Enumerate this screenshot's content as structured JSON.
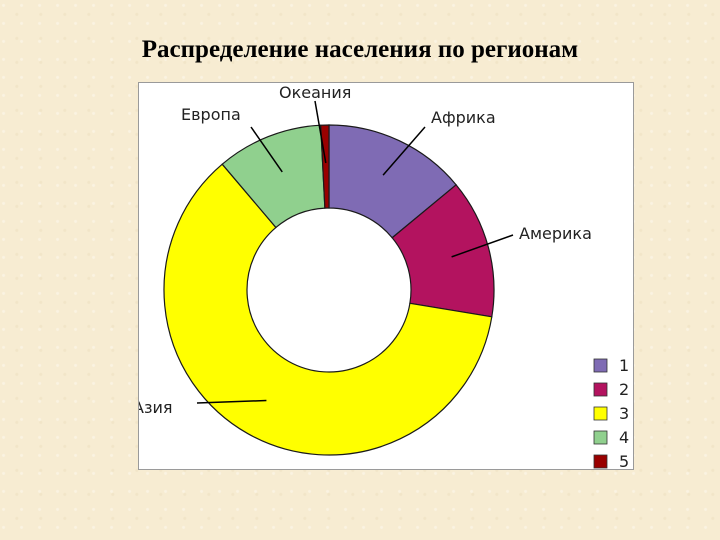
{
  "title": "Распределение населения по регионам",
  "chart_data": {
    "type": "pie",
    "variant": "donut",
    "slices": [
      {
        "legend": "1",
        "label": "Африка",
        "value": 14.0,
        "color": "#7f6bb4"
      },
      {
        "legend": "2",
        "label": "Америка",
        "value": 13.6,
        "color": "#b3135f"
      },
      {
        "legend": "3",
        "label": "Азия",
        "value": 61.2,
        "color": "#ffff00"
      },
      {
        "legend": "4",
        "label": "Европа",
        "value": 10.4,
        "color": "#90d08e"
      },
      {
        "legend": "5",
        "label": "Океания",
        "value": 0.8,
        "color": "#990000"
      }
    ],
    "legend_position": "bottom-right"
  }
}
